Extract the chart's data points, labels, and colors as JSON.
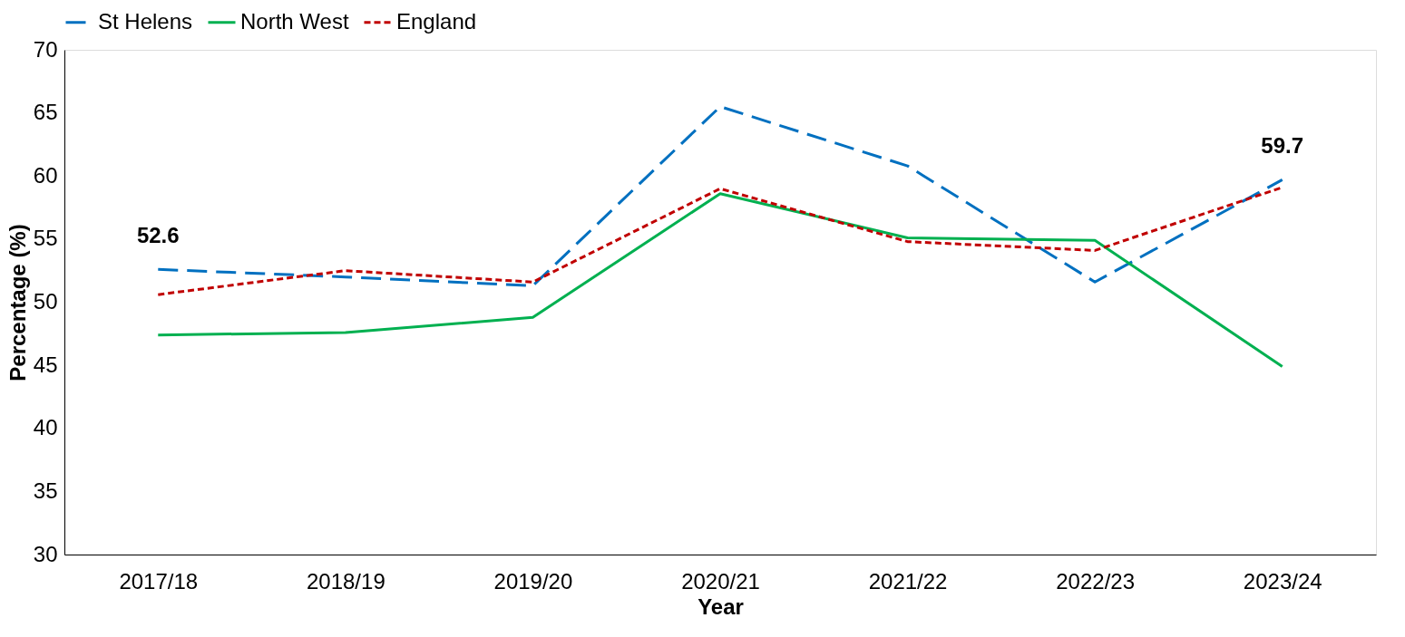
{
  "chart_data": {
    "type": "line",
    "xlabel": "Year",
    "ylabel": "Percentage (%)",
    "categories": [
      "2017/18",
      "2018/19",
      "2019/20",
      "2020/21",
      "2021/22",
      "2022/23",
      "2023/24"
    ],
    "series": [
      {
        "name": "St Helens",
        "color": "#0070c0",
        "line_style": "dashed",
        "values": [
          52.6,
          52.0,
          51.3,
          65.5,
          60.8,
          51.6,
          59.7
        ],
        "value_labels": [
          "52.6",
          null,
          null,
          null,
          null,
          null,
          "59.7"
        ]
      },
      {
        "name": "North West",
        "color": "#00b050",
        "line_style": "solid",
        "values": [
          47.4,
          47.6,
          48.8,
          58.6,
          55.1,
          54.9,
          44.9
        ]
      },
      {
        "name": "England",
        "color": "#c00000",
        "line_style": "dotted",
        "values": [
          50.6,
          52.5,
          51.6,
          59.0,
          54.8,
          54.1,
          59.1
        ]
      }
    ],
    "ylim": [
      30,
      70
    ],
    "yticks": [
      30,
      35,
      40,
      45,
      50,
      55,
      60,
      65,
      70
    ],
    "grid": false,
    "legend": "top",
    "marker": "none"
  }
}
